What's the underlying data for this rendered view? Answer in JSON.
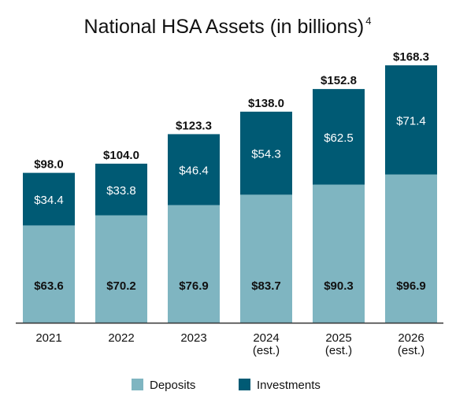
{
  "chart_data": {
    "type": "bar",
    "stacked": true,
    "title": "National HSA Assets (in billions)",
    "title_superscript": "4",
    "categories": [
      [
        "2021"
      ],
      [
        "2022"
      ],
      [
        "2023"
      ],
      [
        "2024",
        "(est.)"
      ],
      [
        "2025",
        "(est.)"
      ],
      [
        "2026",
        "(est.)"
      ]
    ],
    "series": [
      {
        "name": "Deposits",
        "color": "#7fb5c1",
        "values": [
          63.6,
          70.2,
          76.9,
          83.7,
          90.3,
          96.9
        ],
        "labels": [
          "$63.6",
          "$70.2",
          "$76.9",
          "$83.7",
          "$90.3",
          "$96.9"
        ]
      },
      {
        "name": "Investments",
        "color": "#005a74",
        "values": [
          34.4,
          33.8,
          46.4,
          54.3,
          62.5,
          71.4
        ],
        "labels": [
          "$34.4",
          "$33.8",
          "$46.4",
          "$54.3",
          "$62.5",
          "$71.4"
        ]
      }
    ],
    "totals": [
      98.0,
      104.0,
      123.3,
      138.0,
      152.8,
      168.3
    ],
    "total_labels": [
      "$98.0",
      "$104.0",
      "$123.3",
      "$138.0",
      "$152.8",
      "$168.3"
    ],
    "ylim": [
      0,
      168.3
    ],
    "xlabel": "",
    "ylabel": "",
    "grid": false,
    "legend_position": "bottom-center",
    "baseline_color": "#333333"
  }
}
